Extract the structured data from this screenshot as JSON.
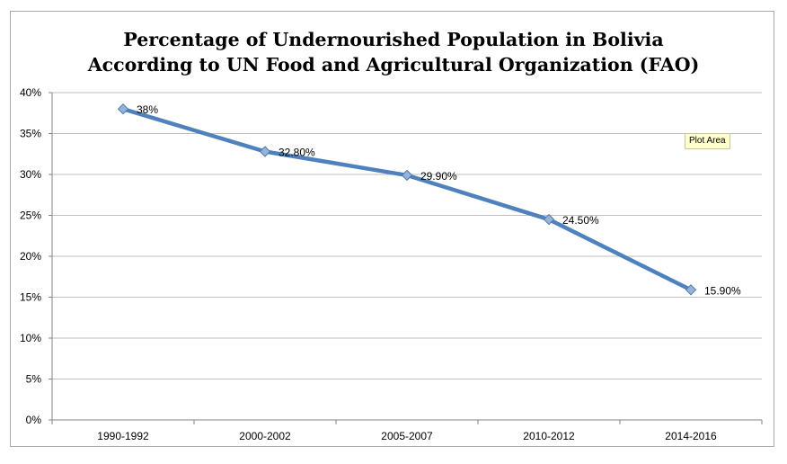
{
  "chart_data": {
    "type": "line",
    "title_lines": [
      "Percentage of Undernourished Population in Bolivia",
      "According to UN Food and Agricultural Organization (FAO)"
    ],
    "categories": [
      "1990-1992",
      "2000-2002",
      "2005-2007",
      "2010-2012",
      "2014-2016"
    ],
    "series": [
      {
        "values": [
          38,
          32.8,
          29.9,
          24.5,
          15.9
        ],
        "data_labels": [
          "38%",
          "32.80%",
          "29.90%",
          "24.50%",
          "15.90%"
        ],
        "color": "#4f81bd",
        "marker": "diamond"
      }
    ],
    "y_ticks": [
      0,
      5,
      10,
      15,
      20,
      25,
      30,
      35,
      40
    ],
    "y_tick_labels": [
      "0%",
      "5%",
      "10%",
      "15%",
      "20%",
      "25%",
      "30%",
      "35%",
      "40%"
    ],
    "ylim": [
      0,
      40
    ],
    "grid": true,
    "legend": "none"
  },
  "tooltip": {
    "text": "Plot Area"
  },
  "colors": {
    "line": "#4f81bd",
    "marker_fill": "#95b3d7",
    "grid": "#bfbfbf",
    "axis": "#868686"
  }
}
